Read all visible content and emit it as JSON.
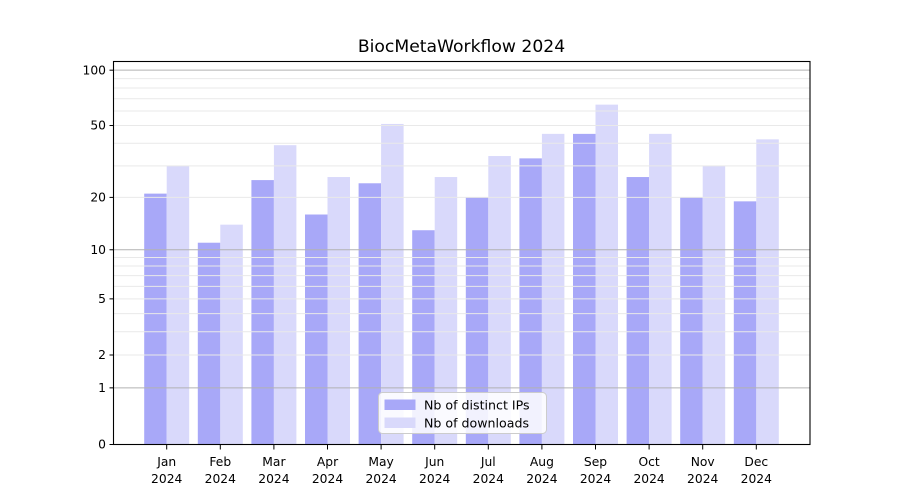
{
  "chart_data": {
    "type": "bar",
    "title": "BiocMetaWorkflow 2024",
    "categories": [
      "Jan",
      "Feb",
      "Mar",
      "Apr",
      "May",
      "Jun",
      "Jul",
      "Aug",
      "Sep",
      "Oct",
      "Nov",
      "Dec"
    ],
    "category_year": "2024",
    "series": [
      {
        "name": "Nb of distinct IPs",
        "color": "#a8a8f8",
        "values": [
          21,
          11,
          25,
          16,
          24,
          13,
          20,
          33,
          45,
          26,
          20,
          19
        ]
      },
      {
        "name": "Nb of downloads",
        "color": "#d9d9fb",
        "values": [
          30,
          14,
          39,
          26,
          51,
          26,
          34,
          45,
          65,
          45,
          30,
          42
        ]
      }
    ],
    "yscale": "log1p",
    "ylim": [
      0,
      112
    ],
    "yticks": [
      100,
      50,
      20,
      10,
      5,
      2,
      1,
      0
    ],
    "ytick_labels": [
      "100",
      "50",
      "20",
      "10",
      "5",
      "2",
      "1",
      "0"
    ],
    "minor_gridlines": [
      2,
      3,
      4,
      5,
      6,
      7,
      8,
      9,
      20,
      30,
      40,
      50,
      60,
      70,
      80,
      90
    ],
    "major_gridlines": [
      1,
      10,
      100
    ],
    "grid": true,
    "legend_position": "lower-center-inside",
    "colors": {
      "grid_minor": "#e9e9e9",
      "grid_major": "#b2b2b2",
      "spine": "#000000",
      "text": "#000000",
      "legend_border": "#cccccc",
      "legend_bg": "#ffffff"
    }
  }
}
